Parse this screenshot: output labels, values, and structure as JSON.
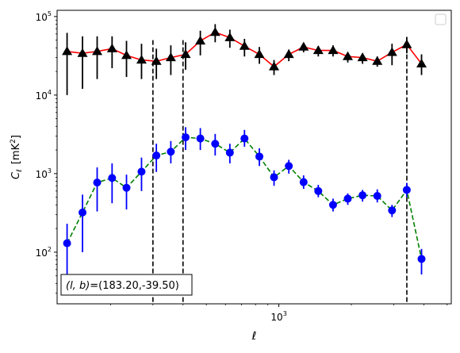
{
  "chart_data": {
    "type": "scatter",
    "xlabel": "ℓ",
    "ylabel_symbol": "C",
    "ylabel_subscript": "ℓ",
    "ylabel_unit_base": "[mK",
    "ylabel_unit_sup": "2",
    "ylabel_unit_close": "]",
    "x_scale": "log",
    "y_scale": "log",
    "xlim": [
      120,
      5200
    ],
    "ylim": [
      22,
      120000
    ],
    "x_tick_labels": [
      {
        "x": 1000,
        "base": "10",
        "exp": "3"
      }
    ],
    "y_tick_labels": [
      {
        "y": 100,
        "base": "10",
        "exp": "2"
      },
      {
        "y": 1000,
        "base": "10",
        "exp": "3"
      },
      {
        "y": 10000,
        "base": "10",
        "exp": "4"
      },
      {
        "y": 100000,
        "base": "10",
        "exp": "5"
      }
    ],
    "annotation": "(l, b)=(183.20,-39.50)",
    "annotation_math": "(l, b)",
    "annotation_value": "=(183.20,-39.50)",
    "vlines": [
      300,
      400,
      3400
    ],
    "legend": "top-right",
    "series": [
      {
        "line_color": "#ff0000",
        "line_style": "solid",
        "marker": "triangle",
        "marker_color": "#000000",
        "points": [
          {
            "x": 132,
            "y": 36000,
            "lo": 10000,
            "hi": 62000
          },
          {
            "x": 153,
            "y": 34000,
            "lo": 12000,
            "hi": 56000
          },
          {
            "x": 176,
            "y": 36000,
            "lo": 16000,
            "hi": 56000
          },
          {
            "x": 203,
            "y": 39000,
            "lo": 22000,
            "hi": 56000
          },
          {
            "x": 233,
            "y": 32000,
            "lo": 17000,
            "hi": 49000
          },
          {
            "x": 269,
            "y": 28000,
            "lo": 16000,
            "hi": 45000
          },
          {
            "x": 310,
            "y": 27000,
            "lo": 16000,
            "hi": 39000
          },
          {
            "x": 356,
            "y": 30000,
            "lo": 18000,
            "hi": 43000
          },
          {
            "x": 410,
            "y": 33000,
            "lo": 21000,
            "hi": 47000
          },
          {
            "x": 472,
            "y": 49000,
            "lo": 32000,
            "hi": 66000
          },
          {
            "x": 544,
            "y": 63000,
            "lo": 47000,
            "hi": 80000
          },
          {
            "x": 626,
            "y": 54000,
            "lo": 40000,
            "hi": 68000
          },
          {
            "x": 720,
            "y": 42000,
            "lo": 31000,
            "hi": 52000
          },
          {
            "x": 830,
            "y": 33000,
            "lo": 25000,
            "hi": 41000
          },
          {
            "x": 955,
            "y": 23000,
            "lo": 18000,
            "hi": 28000
          },
          {
            "x": 1100,
            "y": 33000,
            "lo": 27000,
            "hi": 38000
          },
          {
            "x": 1267,
            "y": 41000,
            "lo": 35000,
            "hi": 46000
          },
          {
            "x": 1458,
            "y": 37000,
            "lo": 31000,
            "hi": 42000
          },
          {
            "x": 1679,
            "y": 37000,
            "lo": 31000,
            "hi": 43000
          },
          {
            "x": 1933,
            "y": 31000,
            "lo": 26000,
            "hi": 35000
          },
          {
            "x": 2226,
            "y": 30000,
            "lo": 25000,
            "hi": 34000
          },
          {
            "x": 2563,
            "y": 27000,
            "lo": 23000,
            "hi": 31000
          },
          {
            "x": 2951,
            "y": 35000,
            "lo": 24000,
            "hi": 45000
          },
          {
            "x": 3398,
            "y": 44000,
            "lo": 34000,
            "hi": 55000
          },
          {
            "x": 3913,
            "y": 25000,
            "lo": 18000,
            "hi": 33000
          }
        ]
      },
      {
        "line_color": "#008000",
        "line_style": "dashed",
        "marker": "circle",
        "marker_color": "#0000ff",
        "points": [
          {
            "x": 132,
            "y": 130,
            "lo": 45,
            "hi": 230
          },
          {
            "x": 153,
            "y": 320,
            "lo": 100,
            "hi": 540
          },
          {
            "x": 176,
            "y": 770,
            "lo": 330,
            "hi": 1200
          },
          {
            "x": 203,
            "y": 880,
            "lo": 420,
            "hi": 1350
          },
          {
            "x": 233,
            "y": 660,
            "lo": 350,
            "hi": 970
          },
          {
            "x": 269,
            "y": 1060,
            "lo": 600,
            "hi": 1600
          },
          {
            "x": 310,
            "y": 1700,
            "lo": 1050,
            "hi": 2400
          },
          {
            "x": 356,
            "y": 1900,
            "lo": 1350,
            "hi": 2600
          },
          {
            "x": 410,
            "y": 2900,
            "lo": 2000,
            "hi": 3900
          },
          {
            "x": 472,
            "y": 2800,
            "lo": 2000,
            "hi": 3800
          },
          {
            "x": 544,
            "y": 2400,
            "lo": 1700,
            "hi": 3200
          },
          {
            "x": 626,
            "y": 1850,
            "lo": 1350,
            "hi": 2400
          },
          {
            "x": 720,
            "y": 2800,
            "lo": 2200,
            "hi": 3600
          },
          {
            "x": 830,
            "y": 1650,
            "lo": 1250,
            "hi": 2100
          },
          {
            "x": 955,
            "y": 900,
            "lo": 700,
            "hi": 1100
          },
          {
            "x": 1100,
            "y": 1250,
            "lo": 1000,
            "hi": 1500
          },
          {
            "x": 1267,
            "y": 780,
            "lo": 640,
            "hi": 950
          },
          {
            "x": 1458,
            "y": 600,
            "lo": 500,
            "hi": 720
          },
          {
            "x": 1679,
            "y": 400,
            "lo": 330,
            "hi": 480
          },
          {
            "x": 1933,
            "y": 480,
            "lo": 400,
            "hi": 560
          },
          {
            "x": 2226,
            "y": 530,
            "lo": 440,
            "hi": 620
          },
          {
            "x": 2563,
            "y": 520,
            "lo": 430,
            "hi": 630
          },
          {
            "x": 2951,
            "y": 340,
            "lo": 280,
            "hi": 400
          },
          {
            "x": 3398,
            "y": 620,
            "lo": 500,
            "hi": 760
          },
          {
            "x": 3913,
            "y": 82,
            "lo": 52,
            "hi": 110
          }
        ]
      }
    ]
  }
}
